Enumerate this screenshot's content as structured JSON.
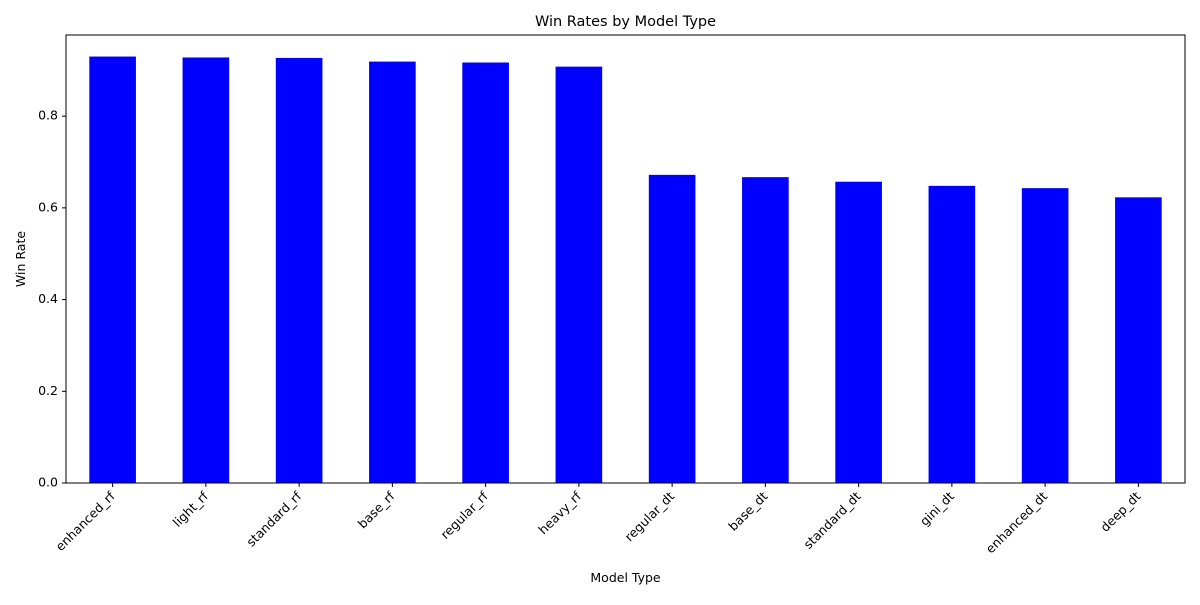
{
  "chart_data": {
    "type": "bar",
    "title": "Win Rates by Model Type",
    "xlabel": "Model Type",
    "ylabel": "Win Rate",
    "categories": [
      "enhanced_rf",
      "light_rf",
      "standard_rf",
      "base_rf",
      "regular_rf",
      "heavy_rf",
      "regular_dt",
      "base_dt",
      "standard_dt",
      "gini_dt",
      "enhanced_dt",
      "deep_dt"
    ],
    "values": [
      0.93,
      0.928,
      0.927,
      0.919,
      0.917,
      0.908,
      0.672,
      0.667,
      0.657,
      0.648,
      0.643,
      0.623
    ],
    "ylim": [
      0,
      0.977
    ],
    "yticks": [
      0.0,
      0.2,
      0.4,
      0.6,
      0.8
    ],
    "ytick_labels": [
      "0.0",
      "0.2",
      "0.4",
      "0.6",
      "0.8"
    ],
    "bar_color": "#0000ff",
    "grid": false,
    "legend": "none"
  }
}
